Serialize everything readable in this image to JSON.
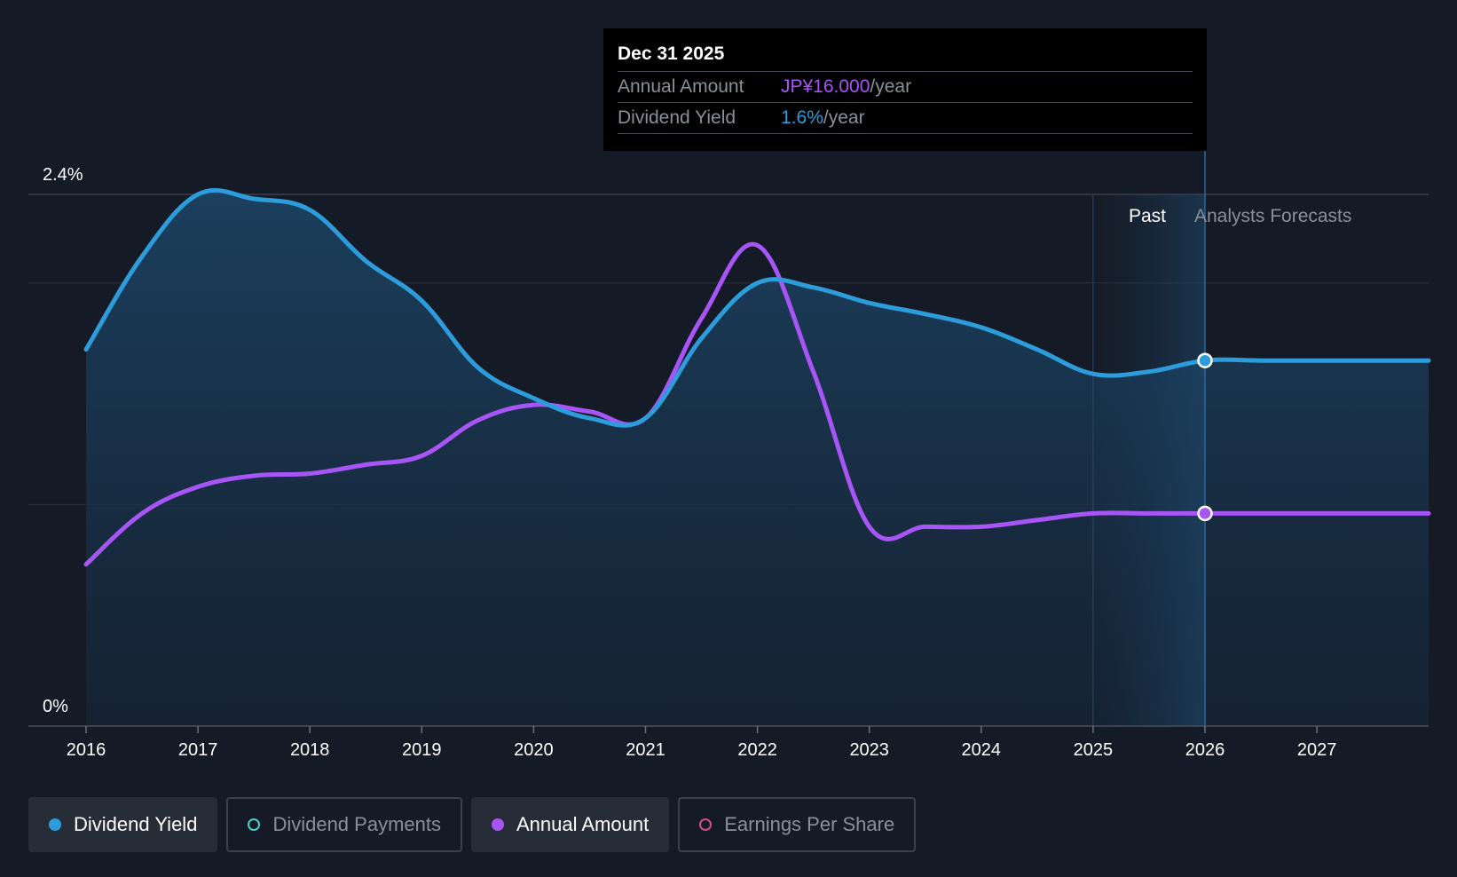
{
  "chart_data": {
    "type": "area",
    "title": "",
    "ylabel_top": "2.4%",
    "ylabel_bottom": "0%",
    "ylim": [
      0,
      2.4
    ],
    "x_ticks": [
      "2016",
      "2017",
      "2018",
      "2019",
      "2020",
      "2021",
      "2022",
      "2023",
      "2024",
      "2025",
      "2026",
      "2027"
    ],
    "x_range": [
      2015.5,
      2028.0
    ],
    "past_label": "Past",
    "forecast_label": "Analysts Forecasts",
    "forecast_start": 2025.0,
    "series": [
      {
        "name": "Dividend Yield",
        "color": "#2d9cdb",
        "x": [
          2016.0,
          2016.5,
          2017.0,
          2017.5,
          2018.0,
          2018.5,
          2019.0,
          2019.5,
          2020.0,
          2020.5,
          2021.0,
          2021.5,
          2022.0,
          2022.5,
          2023.0,
          2023.5,
          2024.0,
          2024.5,
          2025.0,
          2025.5,
          2026.0,
          2026.5,
          2027.0,
          2027.5,
          2028.0
        ],
        "values": [
          1.7,
          2.12,
          2.4,
          2.38,
          2.33,
          2.1,
          1.92,
          1.62,
          1.48,
          1.39,
          1.39,
          1.75,
          2.0,
          1.98,
          1.91,
          1.86,
          1.8,
          1.7,
          1.59,
          1.6,
          1.65,
          1.65,
          1.65,
          1.65,
          1.65
        ]
      },
      {
        "name": "Annual Amount",
        "color": "#a855f7",
        "x": [
          2016.0,
          2016.5,
          2017.0,
          2017.5,
          2018.0,
          2018.5,
          2019.0,
          2019.5,
          2020.0,
          2020.5,
          2021.0,
          2021.5,
          2022.0,
          2022.5,
          2023.0,
          2023.5,
          2024.0,
          2024.5,
          2025.0,
          2025.5,
          2026.0,
          2026.5,
          2027.0,
          2027.5,
          2028.0
        ],
        "values": [
          0.73,
          0.96,
          1.08,
          1.13,
          1.14,
          1.18,
          1.22,
          1.38,
          1.45,
          1.42,
          1.39,
          1.84,
          2.17,
          1.6,
          0.9,
          0.9,
          0.9,
          0.93,
          0.96,
          0.96,
          0.96,
          0.96,
          0.96,
          0.96,
          0.96
        ]
      }
    ],
    "highlight": {
      "x": 2026.0,
      "yield": 1.65,
      "amount": 0.96
    }
  },
  "tooltip": {
    "date": "Dec 31 2025",
    "rows": [
      {
        "key": "Annual Amount",
        "value": "JP¥16.000",
        "unit": "/year"
      },
      {
        "key": "Dividend Yield",
        "value": "1.6%",
        "unit": "/year"
      }
    ]
  },
  "legend": {
    "items": [
      {
        "label": "Dividend Yield",
        "color": "#2d9cdb",
        "active": true
      },
      {
        "label": "Dividend Payments",
        "color": "#4fd1c5",
        "active": false
      },
      {
        "label": "Annual Amount",
        "color": "#a855f7",
        "active": true
      },
      {
        "label": "Earnings Per Share",
        "color": "#d14f8a",
        "active": false
      }
    ]
  }
}
